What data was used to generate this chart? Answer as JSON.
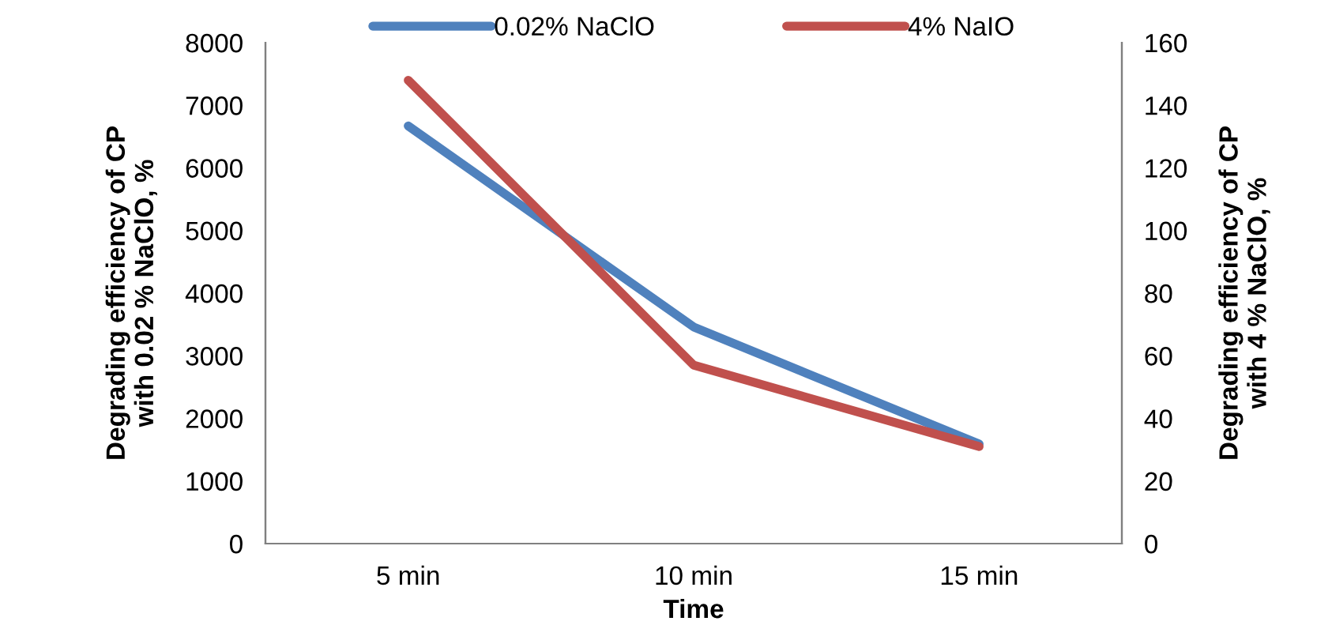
{
  "chart_data": {
    "type": "line",
    "xlabel": "Time",
    "ylabel": "Degrading efficiency of CP\nwith 0.02 % NaClO, %",
    "y2label": "Degrading efficiency of CP\nwith 4 % NaClO, %",
    "categories": [
      "5 min",
      "10 min",
      "15 min"
    ],
    "series": [
      {
        "name": "0.02% NaClO",
        "color": "#4f81bd",
        "values": [
          6670,
          3460,
          1590
        ]
      },
      {
        "name": "4% NaIO",
        "color": "#c0504d",
        "values": [
          148,
          57,
          31
        ],
        "axis": "y2"
      }
    ],
    "ylim": [
      0,
      8000
    ],
    "yticks": [
      0,
      1000,
      2000,
      3000,
      4000,
      5000,
      6000,
      7000,
      8000
    ],
    "y2lim": [
      0,
      160
    ],
    "y2ticks": [
      0,
      20,
      40,
      60,
      80,
      100,
      120,
      140,
      160
    ],
    "grid": false,
    "legend": "top",
    "marker": "none",
    "line_style": "solid"
  }
}
